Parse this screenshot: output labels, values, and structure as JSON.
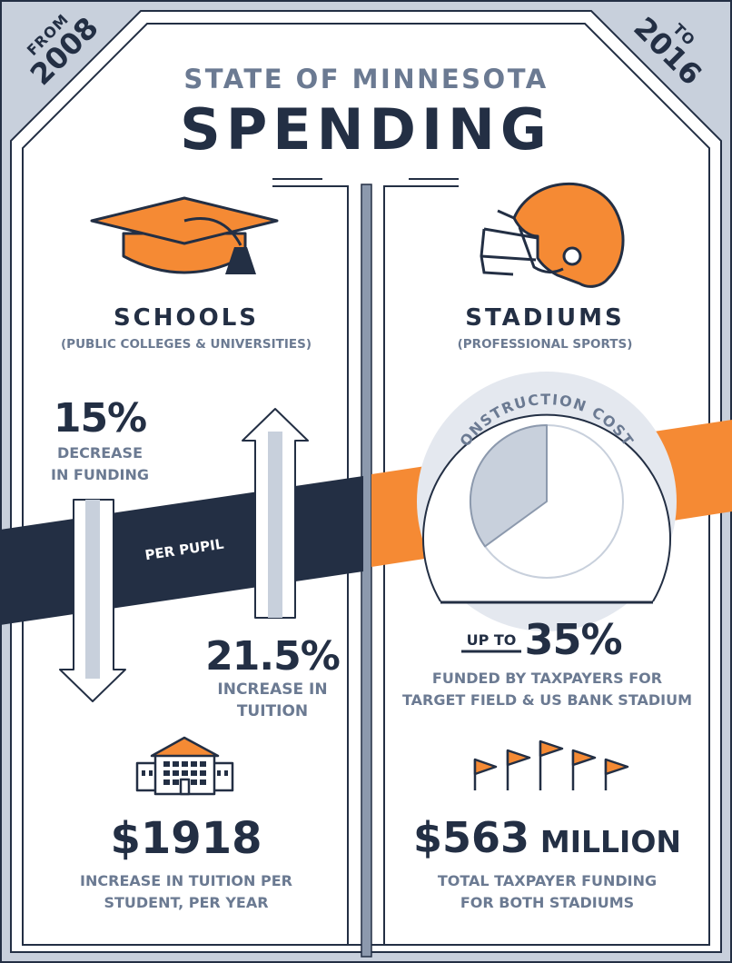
{
  "corner_left": {
    "from": "FROM",
    "year": "2008"
  },
  "corner_right": {
    "to": "TO",
    "year": "2016"
  },
  "header": {
    "subtitle": "STATE OF MINNESOTA",
    "title": "SPENDING"
  },
  "band_label": "PER PUPIL",
  "colors": {
    "navy": "#232f44",
    "orange": "#f58a34",
    "slate": "#6b7a92",
    "light": "#c8d0dc"
  },
  "schools": {
    "title": "SCHOOLS",
    "subtitle": "(PUBLIC COLLEGES & UNIVERSITIES)",
    "icon": "graduation-cap-icon",
    "funding": {
      "value": "15%",
      "label_line1": "DECREASE",
      "label_line2": "IN FUNDING"
    },
    "tuition": {
      "value": "21.5%",
      "label_line1": "INCREASE IN",
      "label_line2": "TUITION"
    },
    "building_icon": "school-building-icon",
    "total": {
      "value": "$1918",
      "label_line1": "INCREASE IN TUITION PER",
      "label_line2": "STUDENT, PER YEAR"
    }
  },
  "stadiums": {
    "title": "STADIUMS",
    "subtitle": "(PROFESSIONAL SPORTS)",
    "icon": "football-helmet-icon",
    "pie_label": "CONSTRUCTION COSTS",
    "taxpayer_share_percent": 35,
    "up_to": "UP TO",
    "share": "35%",
    "share_label_line1": "FUNDED BY TAXPAYERS FOR",
    "share_label_line2": "TARGET FIELD & US BANK STADIUM",
    "flags_icon": "pennant-flags-icon",
    "total": {
      "value": "$563",
      "unit": "MILLION",
      "label_line1": "TOTAL TAXPAYER FUNDING",
      "label_line2": "FOR BOTH STADIUMS"
    }
  }
}
